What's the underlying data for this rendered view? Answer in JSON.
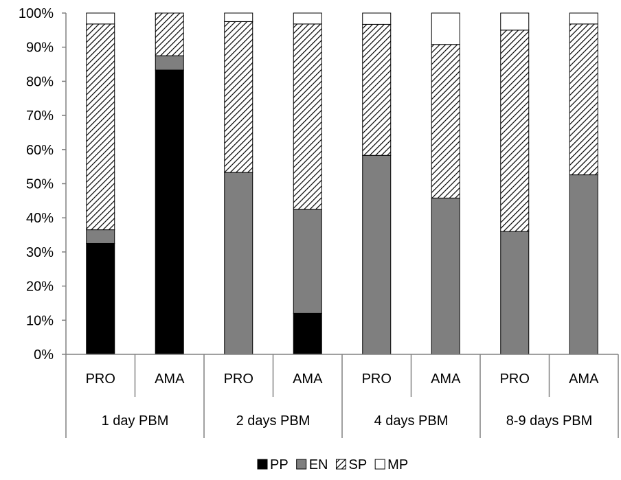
{
  "chart_data": {
    "type": "bar",
    "stacked": "percent",
    "title": "",
    "xlabel": "",
    "ylabel": "",
    "ylim": [
      0,
      100
    ],
    "y_ticks": [
      "0%",
      "10%",
      "20%",
      "30%",
      "40%",
      "50%",
      "60%",
      "70%",
      "80%",
      "90%",
      "100%"
    ],
    "grid": false,
    "legend_position": "bottom",
    "groups": [
      "1 day PBM",
      "2 days PBM",
      "4 days PBM",
      "8-9 days PBM"
    ],
    "categories": [
      "PRO",
      "AMA",
      "PRO",
      "AMA",
      "PRO",
      "AMA",
      "PRO",
      "AMA"
    ],
    "series": [
      {
        "name": "PP",
        "fill": "solid",
        "color": "#000000",
        "values": [
          32.5,
          83.3,
          0,
          12.0,
          0,
          0,
          0,
          0
        ]
      },
      {
        "name": "EN",
        "fill": "solid",
        "color": "#7f7f7f",
        "values": [
          4.0,
          4.2,
          53.3,
          30.5,
          58.3,
          45.8,
          36.0,
          52.6
        ]
      },
      {
        "name": "SP",
        "fill": "hatched",
        "color": "#000000",
        "values": [
          60.3,
          12.5,
          44.2,
          54.3,
          38.4,
          45.0,
          59.0,
          44.2
        ]
      },
      {
        "name": "MP",
        "fill": "solid",
        "color": "#ffffff",
        "values": [
          3.2,
          0,
          2.5,
          3.2,
          3.3,
          9.2,
          5.0,
          3.2
        ]
      }
    ]
  }
}
